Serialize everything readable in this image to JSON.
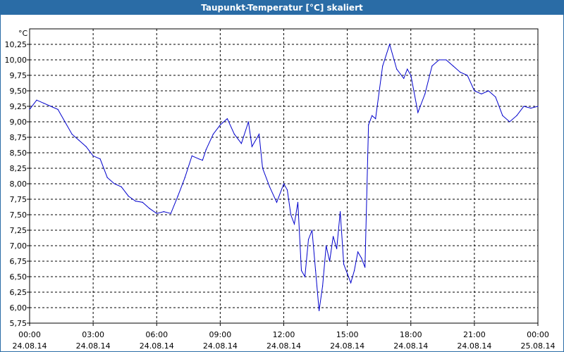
{
  "window": {
    "title": "Taupunkt-Temperatur [°C] skaliert"
  },
  "chart_data": {
    "type": "line",
    "title": "Taupunkt-Temperatur [°C] skaliert",
    "ylabel": "°C",
    "ylim": [
      5.75,
      10.5
    ],
    "xlim": [
      "24.08.14 00:00",
      "25.08.14 00:00"
    ],
    "y_ticks": [
      "5,75",
      "6,00",
      "6,25",
      "6,50",
      "6,75",
      "7,00",
      "7,25",
      "7,50",
      "7,75",
      "8,00",
      "8,25",
      "8,50",
      "8,75",
      "9,00",
      "9,25",
      "9,50",
      "9,75",
      "10,00",
      "10,25"
    ],
    "x_ticks": [
      {
        "time": "00:00",
        "date": "24.08.14"
      },
      {
        "time": "03:00",
        "date": "24.08.14"
      },
      {
        "time": "06:00",
        "date": "24.08.14"
      },
      {
        "time": "09:00",
        "date": "24.08.14"
      },
      {
        "time": "12:00",
        "date": "24.08.14"
      },
      {
        "time": "15:00",
        "date": "24.08.14"
      },
      {
        "time": "18:00",
        "date": "24.08.14"
      },
      {
        "time": "21:00",
        "date": "24.08.14"
      },
      {
        "time": "00:00",
        "date": "25.08.14"
      }
    ],
    "grid": true,
    "line_color": "#0000cc",
    "series": [
      {
        "x": [
          "24.08.14 00:00",
          "24.08.14 00:20",
          "24.08.14 00:40",
          "24.08.14 01:00",
          "24.08.14 01:20",
          "24.08.14 01:40",
          "24.08.14 02:00",
          "24.08.14 02:20",
          "24.08.14 02:40",
          "24.08.14 03:00",
          "24.08.14 03:20",
          "24.08.14 03:40",
          "24.08.14 04:00",
          "24.08.14 04:20",
          "24.08.14 04:40",
          "24.08.14 05:00",
          "24.08.14 05:20",
          "24.08.14 05:40",
          "24.08.14 06:00",
          "24.08.14 06:20",
          "24.08.14 06:40",
          "24.08.14 07:00",
          "24.08.14 07:20",
          "24.08.14 07:40",
          "24.08.14 08:00",
          "24.08.14 08:10",
          "24.08.14 08:20",
          "24.08.14 08:40",
          "24.08.14 09:00",
          "24.08.14 09:20",
          "24.08.14 09:40",
          "24.08.14 10:00",
          "24.08.14 10:20",
          "24.08.14 10:30",
          "24.08.14 10:50",
          "24.08.14 11:00",
          "24.08.14 11:20",
          "24.08.14 11:40",
          "24.08.14 12:00",
          "24.08.14 12:10",
          "24.08.14 12:20",
          "24.08.14 12:30",
          "24.08.14 12:40",
          "24.08.14 12:50",
          "24.08.14 13:00",
          "24.08.14 13:10",
          "24.08.14 13:20",
          "24.08.14 13:30",
          "24.08.14 13:40",
          "24.08.14 13:50",
          "24.08.14 14:00",
          "24.08.14 14:10",
          "24.08.14 14:20",
          "24.08.14 14:30",
          "24.08.14 14:40",
          "24.08.14 14:50",
          "24.08.14 15:00",
          "24.08.14 15:10",
          "24.08.14 15:20",
          "24.08.14 15:30",
          "24.08.14 15:40",
          "24.08.14 15:50",
          "24.08.14 16:00",
          "24.08.14 16:10",
          "24.08.14 16:20",
          "24.08.14 16:40",
          "24.08.14 17:00",
          "24.08.14 17:20",
          "24.08.14 17:40",
          "24.08.14 17:50",
          "24.08.14 18:00",
          "24.08.14 18:20",
          "24.08.14 18:40",
          "24.08.14 19:00",
          "24.08.14 19:20",
          "24.08.14 19:40",
          "24.08.14 20:00",
          "24.08.14 20:20",
          "24.08.14 20:40",
          "24.08.14 21:00",
          "24.08.14 21:20",
          "24.08.14 21:40",
          "24.08.14 22:00",
          "24.08.14 22:20",
          "24.08.14 22:40",
          "24.08.14 23:00",
          "24.08.14 23:20",
          "24.08.14 23:40",
          "25.08.14 00:00"
        ],
        "values": [
          9.2,
          9.35,
          9.3,
          9.25,
          9.2,
          9.0,
          8.8,
          8.7,
          8.6,
          8.45,
          8.4,
          8.1,
          8.0,
          7.95,
          7.8,
          7.72,
          7.7,
          7.6,
          7.52,
          7.55,
          7.52,
          7.8,
          8.1,
          8.45,
          8.4,
          8.38,
          8.55,
          8.8,
          8.95,
          9.05,
          8.8,
          8.65,
          9.0,
          8.6,
          8.8,
          8.25,
          7.95,
          7.7,
          8.0,
          7.9,
          7.5,
          7.35,
          7.7,
          6.6,
          6.5,
          7.1,
          7.25,
          6.6,
          5.95,
          6.35,
          7.0,
          6.75,
          7.15,
          6.95,
          7.55,
          6.7,
          6.55,
          6.4,
          6.6,
          6.9,
          6.8,
          6.65,
          8.95,
          9.1,
          9.05,
          9.9,
          10.25,
          9.85,
          9.7,
          9.85,
          9.75,
          9.15,
          9.45,
          9.9,
          10.0,
          10.0,
          9.9,
          9.8,
          9.75,
          9.5,
          9.45,
          9.5,
          9.4,
          9.1,
          9.0,
          9.1,
          9.25,
          9.22,
          9.25
        ]
      }
    ]
  }
}
